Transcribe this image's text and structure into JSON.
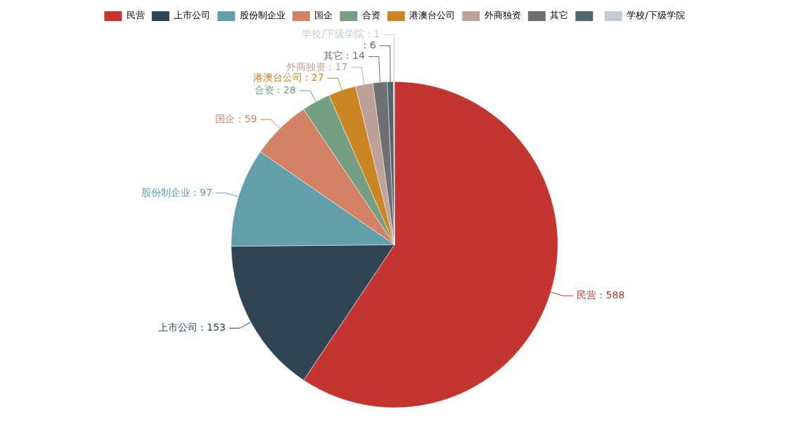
{
  "chart_data": {
    "type": "pie",
    "categories": [
      "民营",
      "上市公司",
      "股份制企业",
      "国企",
      "合资",
      "港澳台公司",
      "外商独资",
      "其它",
      null,
      "学校/下级学院"
    ],
    "values": [
      588,
      153,
      97,
      59,
      28,
      27,
      17,
      14,
      6,
      1
    ],
    "colors": [
      "#c23531",
      "#2f4554",
      "#61a0a8",
      "#d48265",
      "#749f83",
      "#ca8622",
      "#bda29a",
      "#6e7074",
      "#546570",
      "#c4ccd3"
    ],
    "value_labels": [
      ": 588",
      ": 153",
      ": 97",
      ": 59",
      ": 28",
      ": 27",
      ": 17",
      ": 14",
      ": 6",
      ": 1"
    ],
    "legend": "top"
  }
}
